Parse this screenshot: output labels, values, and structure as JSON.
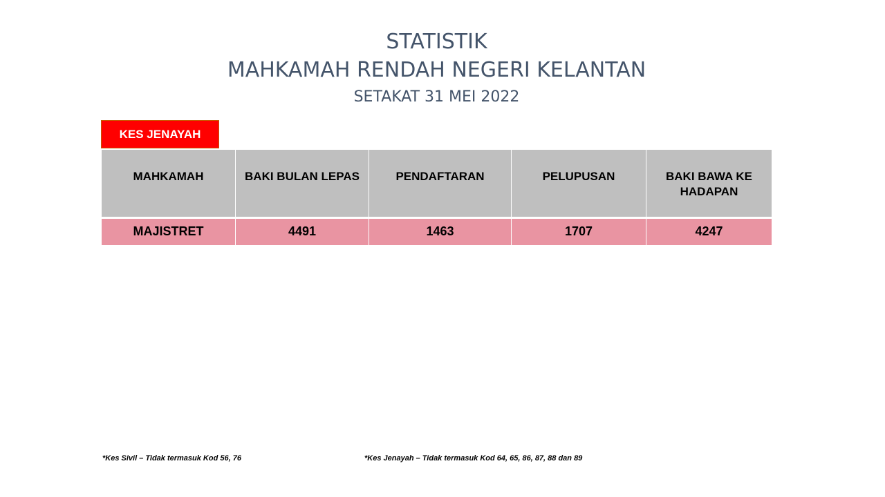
{
  "header": {
    "title_line1": "STATISTIK",
    "title_line2": "MAHKAMAH RENDAH NEGERI KELANTAN",
    "title_line3": "SETAKAT 31 MEI 2022"
  },
  "tag": {
    "label": "KES JENAYAH",
    "color": "#ff0000"
  },
  "table": {
    "headers": [
      "MAHKAMAH",
      "BAKI BULAN LEPAS",
      "PENDAFTARAN",
      "PELUPUSAN",
      "BAKI BAWA KE HADAPAN"
    ],
    "rows": [
      [
        "MAJISTRET",
        "4491",
        "1463",
        "1707",
        "4247"
      ]
    ],
    "header_bg": "#bfbfbf",
    "row_bg": "#e994a2"
  },
  "footnotes": {
    "civil": "*Kes Sivil – Tidak termasuk Kod 56, 76",
    "criminal": "*Kes Jenayah – Tidak termasuk Kod 64, 65, 86, 87, 88 dan 89"
  }
}
